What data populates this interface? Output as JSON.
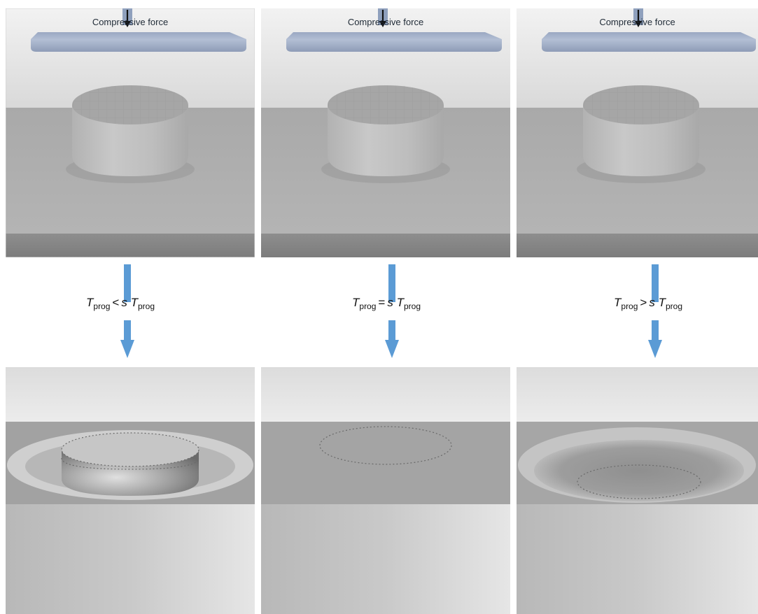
{
  "force_label": "Compressive force",
  "columns": [
    {
      "symbol": "T",
      "subscript": "prog",
      "relation": "<",
      "factor": "s",
      "symbol2": "T",
      "subscript2": "prog"
    },
    {
      "symbol": "T",
      "subscript": "prog",
      "relation": "=",
      "factor": "s",
      "symbol2": "T",
      "subscript2": "prog"
    },
    {
      "symbol": "T",
      "subscript": "prog",
      "relation": ">",
      "factor": "s",
      "symbol2": "T",
      "subscript2": "prog"
    }
  ],
  "colors": {
    "arrow": "#5b9bd5",
    "plate": "#a6b4cc",
    "surface": "#a4a4a4",
    "dotted": "#6a6a6a"
  }
}
